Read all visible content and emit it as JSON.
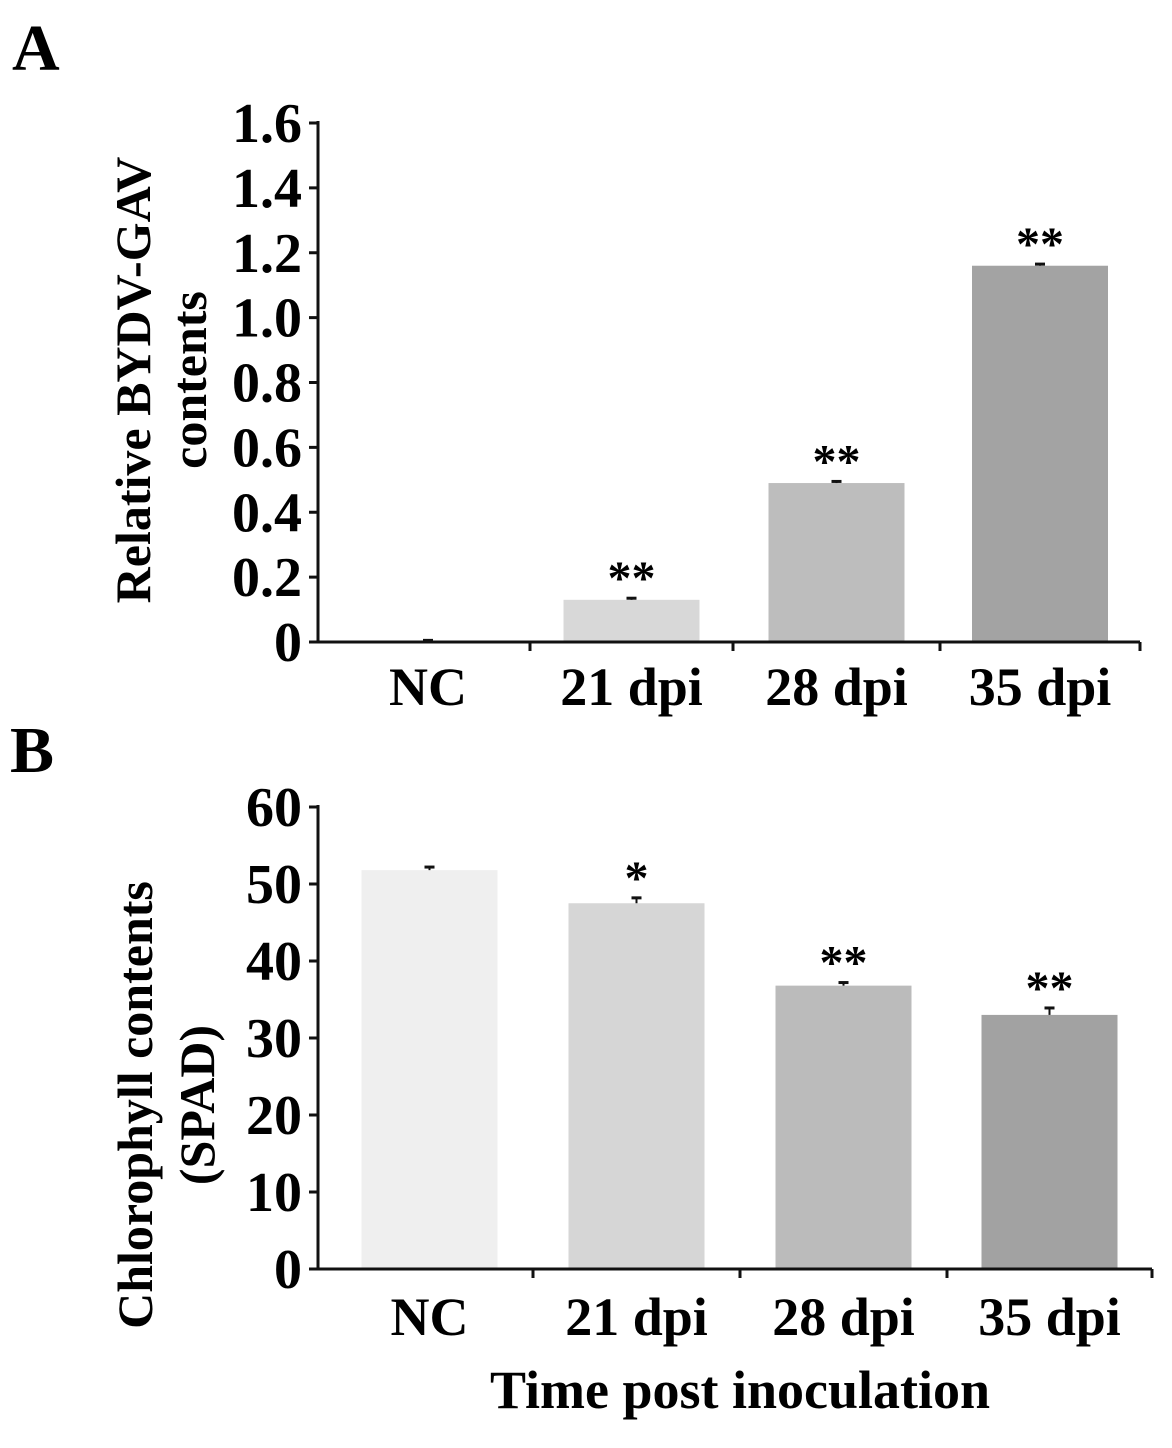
{
  "panels": [
    {
      "letter": "A",
      "ylabel_line1": "Relative BYDV-GAV",
      "ylabel_line2": "contents",
      "chart_data": {
        "type": "bar",
        "categories": [
          "NC",
          "21 dpi",
          "28 dpi",
          "35 dpi"
        ],
        "values": [
          0.0,
          0.13,
          0.49,
          1.16
        ],
        "errors": [
          0.005,
          0.005,
          0.005,
          0.005
        ],
        "significance": [
          "",
          "**",
          "**",
          "**"
        ],
        "ylim": [
          0,
          1.6
        ],
        "yticks": [
          0,
          0.2,
          0.4,
          0.6,
          0.8,
          1.0,
          1.2,
          1.4,
          1.6
        ],
        "ytick_labels": [
          "0",
          "0.2",
          "0.4",
          "0.6",
          "0.8",
          "1.0",
          "1.2",
          "1.4",
          "1.6"
        ],
        "colors": [
          "#eeeeee",
          "#d8d8d8",
          "#bdbdbd",
          "#a3a3a3"
        ],
        "title": "",
        "xlabel": "",
        "ylabel": "Relative BYDV-GAV contents"
      }
    },
    {
      "letter": "B",
      "ylabel_line1": "Chlorophyll contents",
      "ylabel_line2": "(SPAD)",
      "xlabel": "Time post inoculation",
      "chart_data": {
        "type": "bar",
        "categories": [
          "NC",
          "21 dpi",
          "28 dpi",
          "35 dpi"
        ],
        "values": [
          51.8,
          47.5,
          36.8,
          33.0
        ],
        "errors": [
          0.4,
          0.7,
          0.4,
          0.9
        ],
        "significance": [
          "",
          "*",
          "**",
          "**"
        ],
        "ylim": [
          0,
          60
        ],
        "yticks": [
          0,
          10,
          20,
          30,
          40,
          50,
          60
        ],
        "ytick_labels": [
          "0",
          "10",
          "20",
          "30",
          "40",
          "50",
          "60"
        ],
        "colors": [
          "#efefef",
          "#d6d6d6",
          "#bbbbbb",
          "#a2a2a2"
        ],
        "title": "",
        "xlabel": "Time post inoculation",
        "ylabel": "Chlorophyll contents (SPAD)"
      }
    }
  ]
}
